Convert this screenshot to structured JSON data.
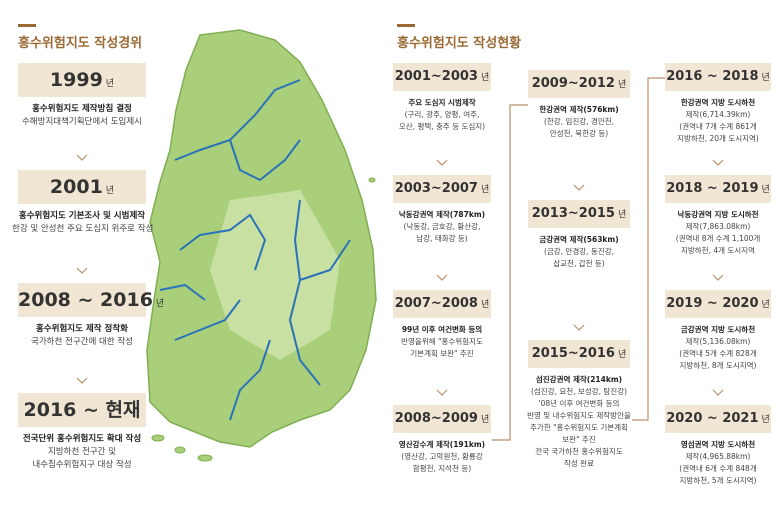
{
  "left": {
    "title": "홍수위험지도 작성경위",
    "steps": [
      {
        "year": "1999",
        "unit": "년",
        "lines": [
          "홍수위험지도 제작방침 결정",
          "수해방지대책기획단에서 도입제시"
        ]
      },
      {
        "year": "2001",
        "unit": "년",
        "lines": [
          "홍수위험지도 기본조사 및 시범제작",
          "한강 및 안성천 주요 도심지 위주로 작성"
        ]
      },
      {
        "year": "2008 ~ 2016",
        "unit": "년",
        "lines": [
          "홍수위험지도 제작 정착화",
          "국가하천 전구간에 대한 작성"
        ]
      },
      {
        "year": "2016 ~ 현재",
        "lines": [
          "전국단위 홍수위험지도 확대 작성",
          "지방하천 전구간 및",
          "내수침수위험지구 대상 작성"
        ]
      }
    ]
  },
  "right": {
    "title": "홍수위험지도 작성현황",
    "columns": [
      [
        {
          "year": "2001~2003",
          "unit": "년",
          "lines": [
            "주요 도심지 시범제작",
            "(구리, 광주, 양평, 여주,",
            "오산, 평택, 충주 등 도심지)"
          ]
        },
        {
          "year": "2003~2007",
          "unit": "년",
          "lines": [
            "낙동강권역 제작(787km)",
            "(낙동강, 금호강, 황산강,",
            "남강, 태화강 등)"
          ]
        },
        {
          "year": "2007~2008",
          "unit": "년",
          "lines": [
            "99년 이후 여건변화 등의",
            "반영을위해 \"홍수위험지도",
            "기본계획 보완\" 추진"
          ]
        },
        {
          "year": "2008~2009",
          "unit": "년",
          "lines": [
            "영산강수계 제작(191km)",
            "(영산강, 고막원천, 황룡강",
            "함평천, 지석천 등)"
          ]
        }
      ],
      [
        {
          "year": "2009~2012",
          "unit": "년",
          "lines": [
            "한강권역 제작(576km)",
            "(한강, 임진강, 경안천,",
            "안성천, 북한강 등)"
          ]
        },
        {
          "year": "2013~2015",
          "unit": "년",
          "lines": [
            "금강권역 제작(563km)",
            "(금강, 만경강, 동진강,",
            "삽교천, 갑천 등)"
          ]
        },
        {
          "year": "2015~2016",
          "unit": "년",
          "lines": [
            "섬진강권역 제작(214km)",
            "(섬진강, 요천, 보성강, 탐진강)",
            "'08년 이후 여건변화 등의",
            "반영 및 내수위험지도 제작방안을",
            "추가한 \"홍수위험지도 기본계획",
            "보완\" 추진",
            "전국 국가하천 홍수위험지도",
            "작성 완료"
          ]
        }
      ],
      [
        {
          "year": "2016 ~ 2018",
          "unit": "년",
          "lines": [
            "한강권역 지방 도시하천",
            "제작(6,714.39km)",
            "(권역내 7개 수계 861개",
            "지방하천, 20개 도시지역)"
          ]
        },
        {
          "year": "2018 ~ 2019",
          "unit": "년",
          "lines": [
            "낙동강권역 지방 도시하천",
            "제작(7,863.08km)",
            "(권역내 8개 수계 1,100개",
            "지방하천, 4개 도시지역"
          ]
        },
        {
          "year": "2019 ~ 2020",
          "unit": "년",
          "lines": [
            "금강권역 지방 도시하천",
            "제작(5,136.08km)",
            "(권역내 5개 수계 828개",
            "지방하천, 8개 도시지역)"
          ]
        },
        {
          "year": "2020 ~ 2021",
          "unit": "년",
          "lines": [
            "영섬권역 지방 도시하천",
            "제작(4,965.88km)",
            "(권역내 6개 수계 848개",
            "지방하천, 5개 도시지역)"
          ]
        }
      ]
    ]
  }
}
